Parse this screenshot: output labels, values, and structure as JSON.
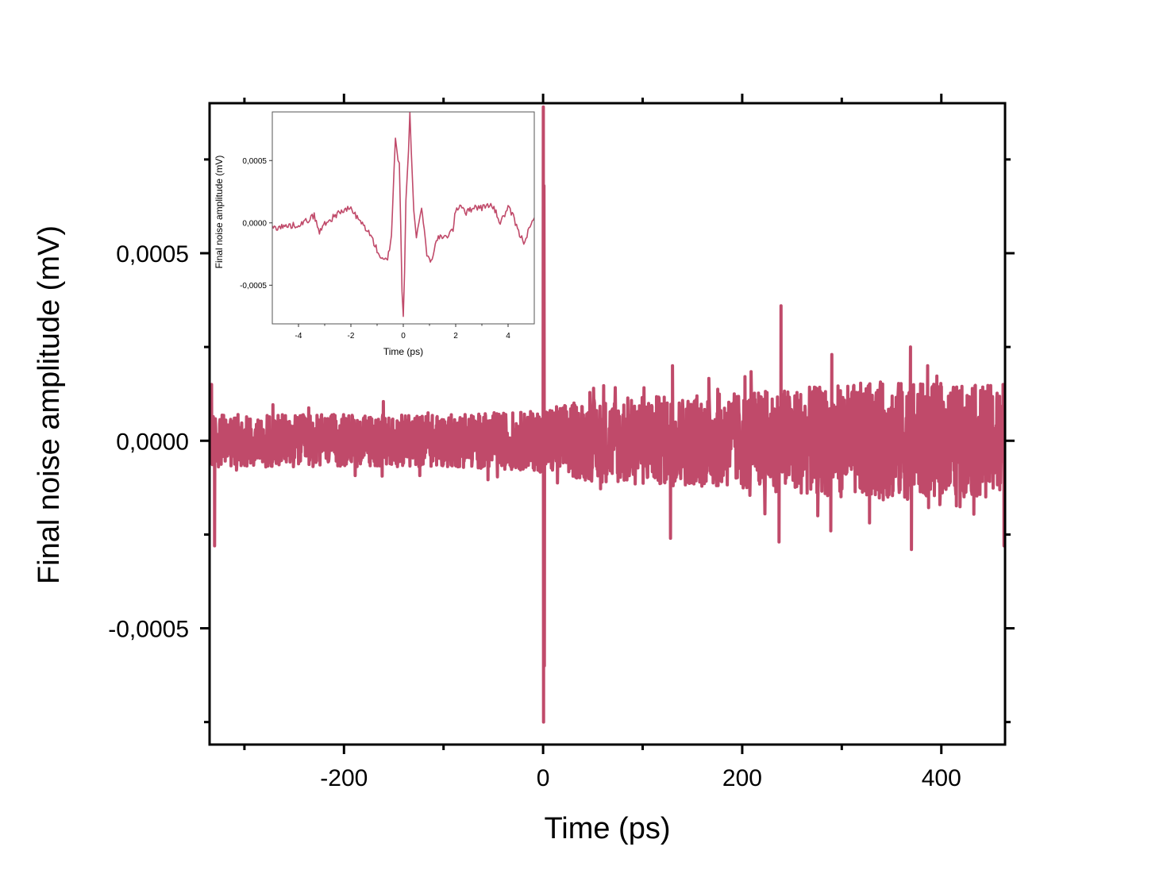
{
  "chart_data": [
    {
      "type": "line",
      "title": "",
      "xlabel": "Time (ps)",
      "ylabel": "Final noise amplitude (mV)",
      "xlim": [
        -335,
        464
      ],
      "ylim": [
        -0.00081,
        0.0009
      ],
      "x_ticks": [
        -200,
        0,
        200,
        400
      ],
      "x_tick_labels": [
        "-200",
        "0",
        "200",
        "400"
      ],
      "x_minor_ticks": [
        -300,
        -100,
        100,
        300
      ],
      "y_ticks": [
        0.0005,
        0.0,
        -0.0005
      ],
      "y_tick_labels": [
        "0,0005",
        "0,0000",
        "-0,0005"
      ],
      "y_minor_ticks": [
        0.00075,
        0.00025,
        -0.00025,
        -0.00075
      ],
      "grid": false,
      "series": [
        {
          "color": "#c04a6a",
          "noise_envelope": {
            "x": [
              -335,
              -100,
              -5,
              0,
              50,
              100,
              150,
              200,
              250,
              300,
              350,
              400,
              464
            ],
            "amplitude": [
              7e-05,
              7e-05,
              8e-05,
              9e-05,
              0.00011,
              0.00012,
              0.00012,
              0.00013,
              0.00014,
              0.00015,
              0.00016,
              0.00015,
              0.00015
            ]
          },
          "peaks": {
            "x": [
              -333,
              -330,
              0.2,
              0.5,
              0.9,
              1.3,
              130,
              128,
              239,
              237,
              290,
              289,
              369,
              370,
              462,
              463
            ],
            "y": [
              0.00015,
              -0.00028,
              0.00089,
              -0.00075,
              0.00068,
              -0.0006,
              0.0002,
              -0.00026,
              0.00036,
              -0.00027,
              0.00023,
              -0.00024,
              0.00025,
              -0.00029,
              0.00015,
              -0.00028
            ]
          }
        }
      ]
    },
    {
      "type": "line",
      "title": "",
      "xlabel": "Time (ps)",
      "ylabel": "Final noise amplitude (mV)",
      "xlim": [
        -5,
        5
      ],
      "ylim": [
        -0.00081,
        0.00089
      ],
      "x_ticks": [
        -4,
        -2,
        0,
        2,
        4
      ],
      "x_tick_labels": [
        "-4",
        "-2",
        "0",
        "2",
        "4"
      ],
      "y_ticks": [
        0.0005,
        0.0,
        -0.0005
      ],
      "y_tick_labels": [
        "0,0005",
        "0,0000",
        "-0,0005"
      ],
      "grid": false,
      "series": [
        {
          "color": "#c04a6a",
          "x": [
            -5.0,
            -4.6,
            -4.2,
            -3.8,
            -3.4,
            -3.2,
            -3.0,
            -2.8,
            -2.6,
            -2.4,
            -2.2,
            -2.0,
            -1.8,
            -1.6,
            -1.4,
            -1.2,
            -1.0,
            -0.8,
            -0.6,
            -0.45,
            -0.35,
            -0.3,
            -0.2,
            -0.15,
            -0.1,
            -0.05,
            0.0,
            0.05,
            0.1,
            0.2,
            0.25,
            0.3,
            0.4,
            0.5,
            0.6,
            0.7,
            0.8,
            0.9,
            1.0,
            1.1,
            1.3,
            1.6,
            1.9,
            2.0,
            2.2,
            2.4,
            2.7,
            3.0,
            3.3,
            3.5,
            3.7,
            4.0,
            4.2,
            4.4,
            4.6,
            4.8,
            5.0
          ],
          "y": [
            -4e-05,
            -3e-05,
            -2e-05,
            0.0,
            6e-05,
            -8e-05,
            0.0,
            2e-05,
            6e-05,
            9e-05,
            0.0001,
            0.00012,
            5e-05,
            0.0,
            -5e-05,
            -0.00012,
            -0.00022,
            -0.0003,
            -0.0003,
            -0.0001,
            0.00045,
            0.00068,
            0.0005,
            0.00048,
            0.0,
            -0.00055,
            -0.00075,
            -0.0004,
            0.00018,
            0.00058,
            0.00089,
            0.0006,
            0.0001,
            -0.00012,
            2e-05,
            0.00012,
            -5e-05,
            -0.00025,
            -0.0003,
            -0.00028,
            -0.00012,
            -0.00012,
            -5e-05,
            0.0001,
            0.00015,
            8e-05,
            0.00013,
            0.00012,
            0.00015,
            0.0001,
            0.0,
            0.00012,
            5e-05,
            -8e-05,
            -0.00015,
            -6e-05,
            4e-05
          ]
        }
      ]
    }
  ]
}
